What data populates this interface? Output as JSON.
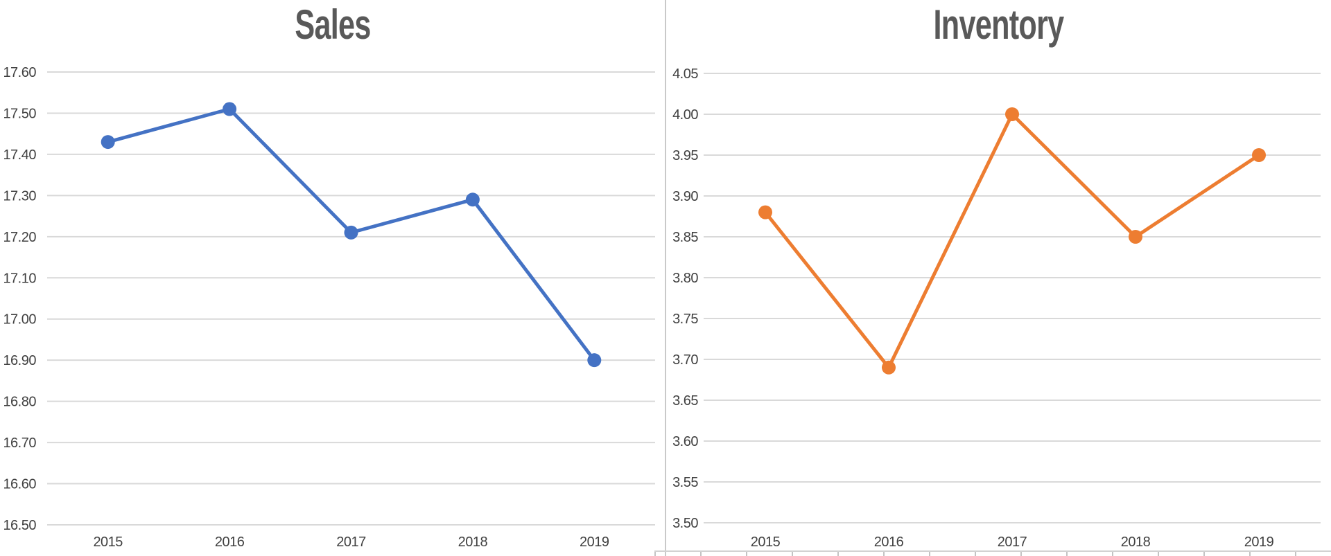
{
  "colors": {
    "background": "#ffffff",
    "gridline": "#d9d9d9",
    "tick_label": "#404040",
    "title": "#595959",
    "divider": "#c9c9c9",
    "sales_series": "#4472C4",
    "inventory_series": "#ED7D31"
  },
  "chart_data": [
    {
      "type": "line",
      "title": "Sales",
      "color": "#4472C4",
      "marker": "circle",
      "categories": [
        "2015",
        "2016",
        "2017",
        "2018",
        "2019"
      ],
      "values": [
        17.43,
        17.51,
        17.21,
        17.29,
        16.9
      ],
      "xlabel": "",
      "ylabel": "",
      "ylim": [
        16.5,
        17.6
      ],
      "y_step": 0.1,
      "y_ticks": [
        "17.60",
        "17.50",
        "17.40",
        "17.30",
        "17.20",
        "17.10",
        "17.00",
        "16.90",
        "16.80",
        "16.70",
        "16.60",
        "16.50"
      ],
      "grid": true,
      "legend": "none"
    },
    {
      "type": "line",
      "title": "Inventory",
      "color": "#ED7D31",
      "marker": "circle",
      "categories": [
        "2015",
        "2016",
        "2017",
        "2018",
        "2019"
      ],
      "values": [
        3.88,
        3.69,
        4.0,
        3.85,
        3.95
      ],
      "xlabel": "",
      "ylabel": "",
      "ylim": [
        3.5,
        4.05
      ],
      "y_step": 0.05,
      "y_ticks": [
        "4.05",
        "4.00",
        "3.95",
        "3.90",
        "3.85",
        "3.80",
        "3.75",
        "3.70",
        "3.65",
        "3.60",
        "3.55",
        "3.50"
      ],
      "grid": true,
      "legend": "none"
    }
  ]
}
